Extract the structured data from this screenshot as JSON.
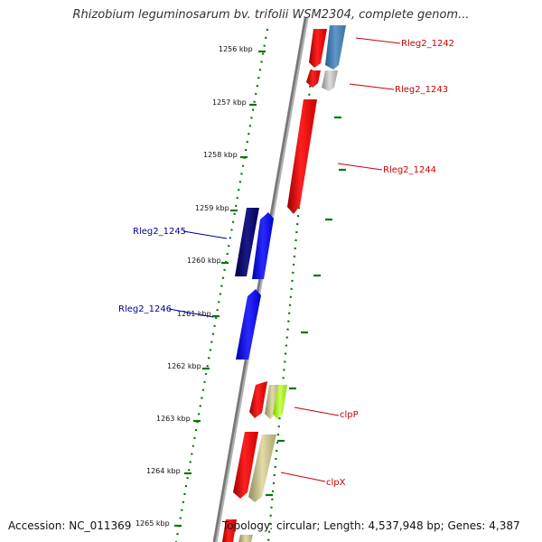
{
  "title": "Rhizobium leguminosarum bv. trifolii WSM2304, complete genom...",
  "footer": {
    "accession": "Accession: NC_011369",
    "info": "Topology: circular; Length: 4,537,948 bp; Genes: 4,387"
  },
  "ticks": [
    "1256 kbp",
    "1257 kbp",
    "1258 kbp",
    "1259 kbp",
    "1260 kbp",
    "1261 kbp",
    "1262 kbp",
    "1263 kbp",
    "1264 kbp",
    "1265 kbp"
  ],
  "genes": {
    "forward": [
      "Rleg2_1242",
      "Rleg2_1243",
      "Rleg2_1244",
      "clpP",
      "clpX"
    ],
    "reverse": [
      "Rleg2_1245",
      "Rleg2_1246"
    ]
  },
  "colors": {
    "forward_label": "#cc0000",
    "reverse_label": "#000099",
    "tick": "#007700",
    "backbone": "#888888"
  }
}
